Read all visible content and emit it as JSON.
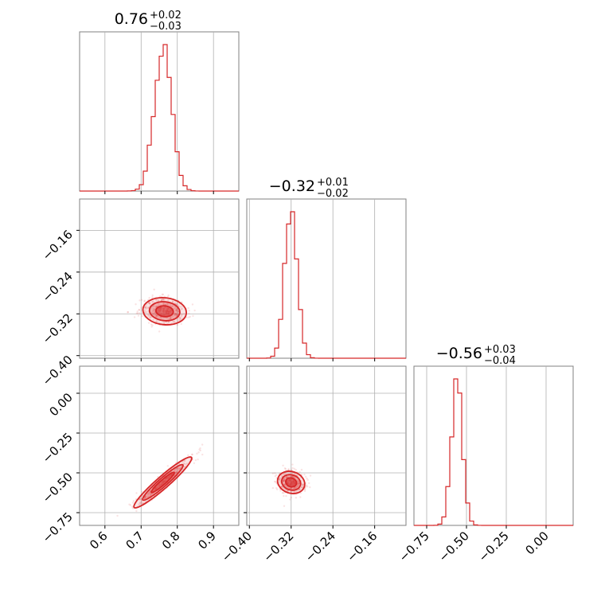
{
  "colors": {
    "series": "#d62728",
    "grid": "#b0b0b0",
    "frame": "#808080"
  },
  "chart_data": {
    "type": "corner",
    "grid": true,
    "parameters": [
      {
        "index": 0,
        "title": {
          "median": "0.76",
          "upper": "+0.02",
          "lower": "−0.03"
        },
        "median": 0.76,
        "err_plus": 0.02,
        "err_minus": 0.03,
        "range": [
          0.53,
          0.97
        ],
        "ticks": [
          0.6,
          0.7,
          0.8,
          0.9
        ],
        "tick_labels": [
          "0.6",
          "0.7",
          "0.8",
          "0.9"
        ],
        "hist_sigma": 0.024
      },
      {
        "index": 1,
        "title": {
          "median": "−0.32",
          "upper": "+0.01",
          "lower": "−0.02"
        },
        "median": -0.32,
        "err_plus": 0.01,
        "err_minus": 0.02,
        "range": [
          -0.405,
          -0.1
        ],
        "ticks": [
          -0.4,
          -0.32,
          -0.24,
          -0.16
        ],
        "tick_labels": [
          "−0.40",
          "−0.32",
          "−0.24",
          "−0.16"
        ],
        "hist_sigma": 0.012
      },
      {
        "index": 2,
        "title": {
          "median": "−0.56",
          "upper": "+0.03",
          "lower": "−0.04"
        },
        "median": -0.56,
        "err_plus": 0.03,
        "err_minus": 0.04,
        "range": [
          -0.83,
          0.17
        ],
        "ticks": [
          -0.75,
          -0.5,
          -0.25,
          0.0
        ],
        "tick_labels": [
          "−0.75",
          "−0.50",
          "−0.25",
          "0.00"
        ],
        "hist_sigma": 0.035
      }
    ],
    "pairs": [
      {
        "x_param": 0,
        "y_param": 1,
        "center": [
          0.765,
          -0.315
        ],
        "spread": [
          0.03,
          0.013
        ],
        "rho": -0.1
      },
      {
        "x_param": 0,
        "y_param": 2,
        "center": [
          0.76,
          -0.56
        ],
        "spread": [
          0.04,
          0.08
        ],
        "rho": 0.95
      },
      {
        "x_param": 1,
        "y_param": 2,
        "center": [
          -0.32,
          -0.56
        ],
        "spread": [
          0.013,
          0.035
        ],
        "rho": -0.15
      }
    ]
  }
}
